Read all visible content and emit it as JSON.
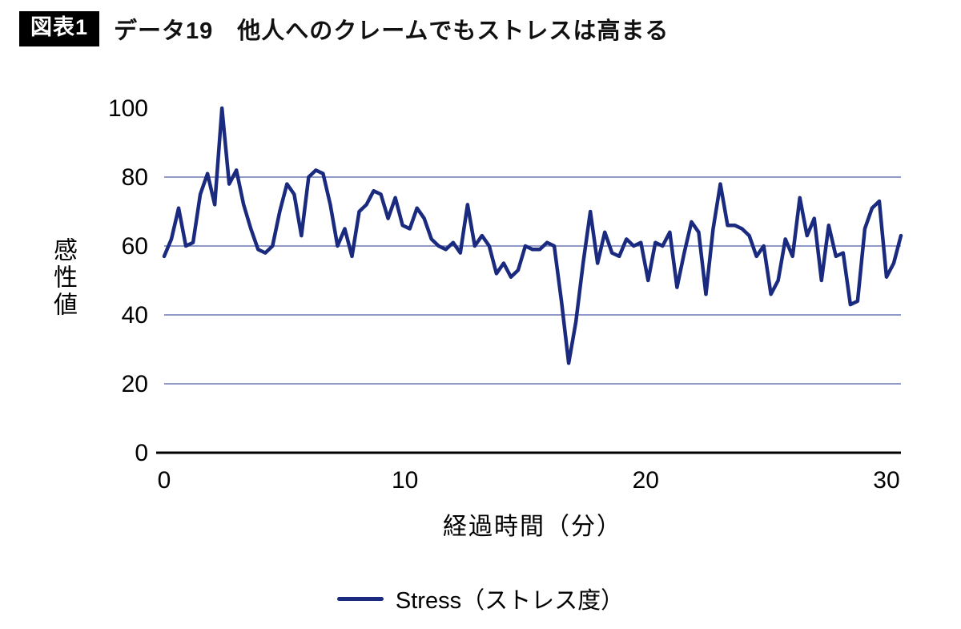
{
  "header": {
    "badge": "図表1",
    "title": "データ19　他人へのクレームでもストレスは高まる"
  },
  "chart_data": {
    "type": "line",
    "title": "データ19　他人へのクレームでもストレスは高まる",
    "xlabel": "経過時間（分）",
    "ylabel": "感性値",
    "legend_position": "bottom",
    "grid": true,
    "xlim": [
      0,
      30.6
    ],
    "ylim": [
      0,
      100
    ],
    "xticks": [
      0,
      10,
      20,
      30
    ],
    "yticks": [
      0,
      20,
      40,
      60,
      80,
      100
    ],
    "line_color": "#1a2a7e",
    "grid_color": "#4d5ca8",
    "axis_color": "#000000",
    "x_step": 0.3,
    "series": [
      {
        "name": "Stress（ストレス度）",
        "values": [
          57,
          62,
          71,
          60,
          61,
          75,
          81,
          72,
          100,
          78,
          82,
          72,
          65,
          59,
          58,
          60,
          70,
          78,
          75,
          63,
          80,
          82,
          81,
          72,
          60,
          65,
          57,
          70,
          72,
          76,
          75,
          68,
          74,
          66,
          65,
          71,
          68,
          62,
          60,
          59,
          61,
          58,
          72,
          60,
          63,
          60,
          52,
          55,
          51,
          53,
          60,
          59,
          59,
          61,
          60,
          44,
          26,
          38,
          55,
          70,
          55,
          64,
          58,
          57,
          62,
          60,
          61,
          50,
          61,
          60,
          64,
          48,
          58,
          67,
          64,
          46,
          65,
          78,
          66,
          66,
          65,
          63,
          57,
          60,
          46,
          50,
          62,
          57,
          74,
          63,
          68,
          50,
          66,
          57,
          58,
          43,
          44,
          65,
          71,
          73,
          51,
          55,
          63
        ]
      }
    ]
  }
}
